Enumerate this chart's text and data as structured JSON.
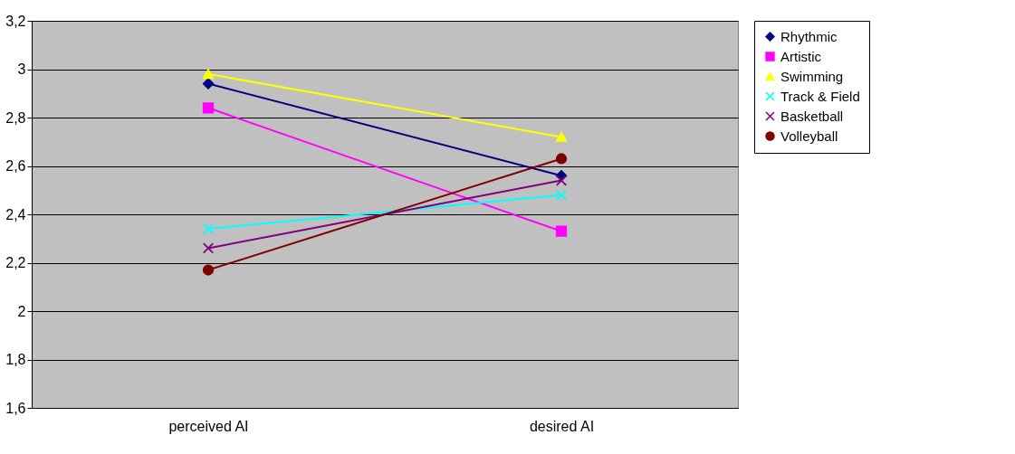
{
  "chart_data": {
    "type": "line",
    "categories": [
      "perceived AI",
      "desired AI"
    ],
    "series": [
      {
        "name": "Rhythmic",
        "color": "#000080",
        "marker": "diamond",
        "values": [
          2.94,
          2.56
        ]
      },
      {
        "name": "Artistic",
        "color": "#ff00ff",
        "marker": "square",
        "values": [
          2.84,
          2.33
        ]
      },
      {
        "name": "Swimming",
        "color": "#ffff00",
        "marker": "triangle",
        "values": [
          2.98,
          2.72
        ]
      },
      {
        "name": "Track & Field",
        "color": "#00ffff",
        "marker": "cross",
        "values": [
          2.34,
          2.48
        ]
      },
      {
        "name": "Basketball",
        "color": "#800080",
        "marker": "cross",
        "values": [
          2.26,
          2.54
        ]
      },
      {
        "name": "Volleyball",
        "color": "#800000",
        "marker": "circle",
        "values": [
          2.17,
          2.63
        ]
      }
    ],
    "ylim": [
      1.6,
      3.2
    ],
    "yticks": [
      {
        "value": 1.6,
        "label": "1,6"
      },
      {
        "value": 1.8,
        "label": "1,8"
      },
      2,
      {
        "value": 2.2,
        "label": "2,2"
      },
      {
        "value": 2.4,
        "label": "2,4"
      },
      {
        "value": 2.6,
        "label": "2,6"
      },
      {
        "value": 2.8,
        "label": "2,8"
      },
      3,
      {
        "value": 3.2,
        "label": "3,2"
      }
    ],
    "grid": "y",
    "legend": "right"
  }
}
